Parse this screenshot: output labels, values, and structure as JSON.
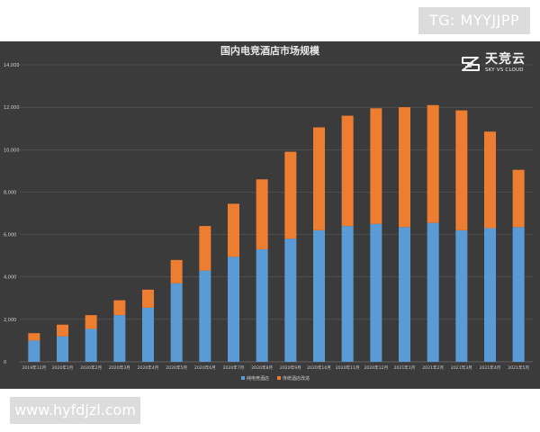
{
  "watermarks": {
    "tg": "TG: MYYJJPP",
    "site": "www.hyfdjzl.com"
  },
  "logo": {
    "name": "天竞云",
    "sub": "SKY VS CLOUD",
    "icon": "sky-vs-cloud-logo-mark"
  },
  "chart_data": {
    "type": "bar",
    "stacked": true,
    "title": "国内电竞酒店市场规模",
    "xlabel": "",
    "ylabel": "",
    "ylim": [
      0,
      14000
    ],
    "yticks": [
      "0",
      "2,000",
      "4,000",
      "6,000",
      "8,000",
      "10,000",
      "12,000",
      "14,000"
    ],
    "ytick_values": [
      0,
      2000,
      4000,
      6000,
      8000,
      10000,
      12000,
      14000
    ],
    "grid": true,
    "legend_position": "bottom",
    "categories": [
      "2019年12月",
      "2020年1月",
      "2020年2月",
      "2020年3月",
      "2020年4月",
      "2020年5月",
      "2020年6月",
      "2020年7月",
      "2020年8月",
      "2020年9月",
      "2020年10月",
      "2020年11月",
      "2020年12月",
      "2021年1月",
      "2021年2月",
      "2021年3月",
      "2021年4月",
      "2021年5月"
    ],
    "series": [
      {
        "name": "纯电竞酒店",
        "color": "#5b9bd5",
        "values": [
          1000,
          1200,
          1550,
          2200,
          2550,
          3700,
          4300,
          4950,
          5300,
          5800,
          6200,
          6400,
          6500,
          6350,
          6550,
          6200,
          6300,
          6350
        ]
      },
      {
        "name": "传统酒店改造",
        "color": "#ed7d31",
        "values": [
          350,
          550,
          650,
          700,
          850,
          1100,
          2100,
          2500,
          3300,
          4100,
          4850,
          5200,
          5450,
          5650,
          5550,
          5650,
          4550,
          2700
        ]
      }
    ]
  }
}
